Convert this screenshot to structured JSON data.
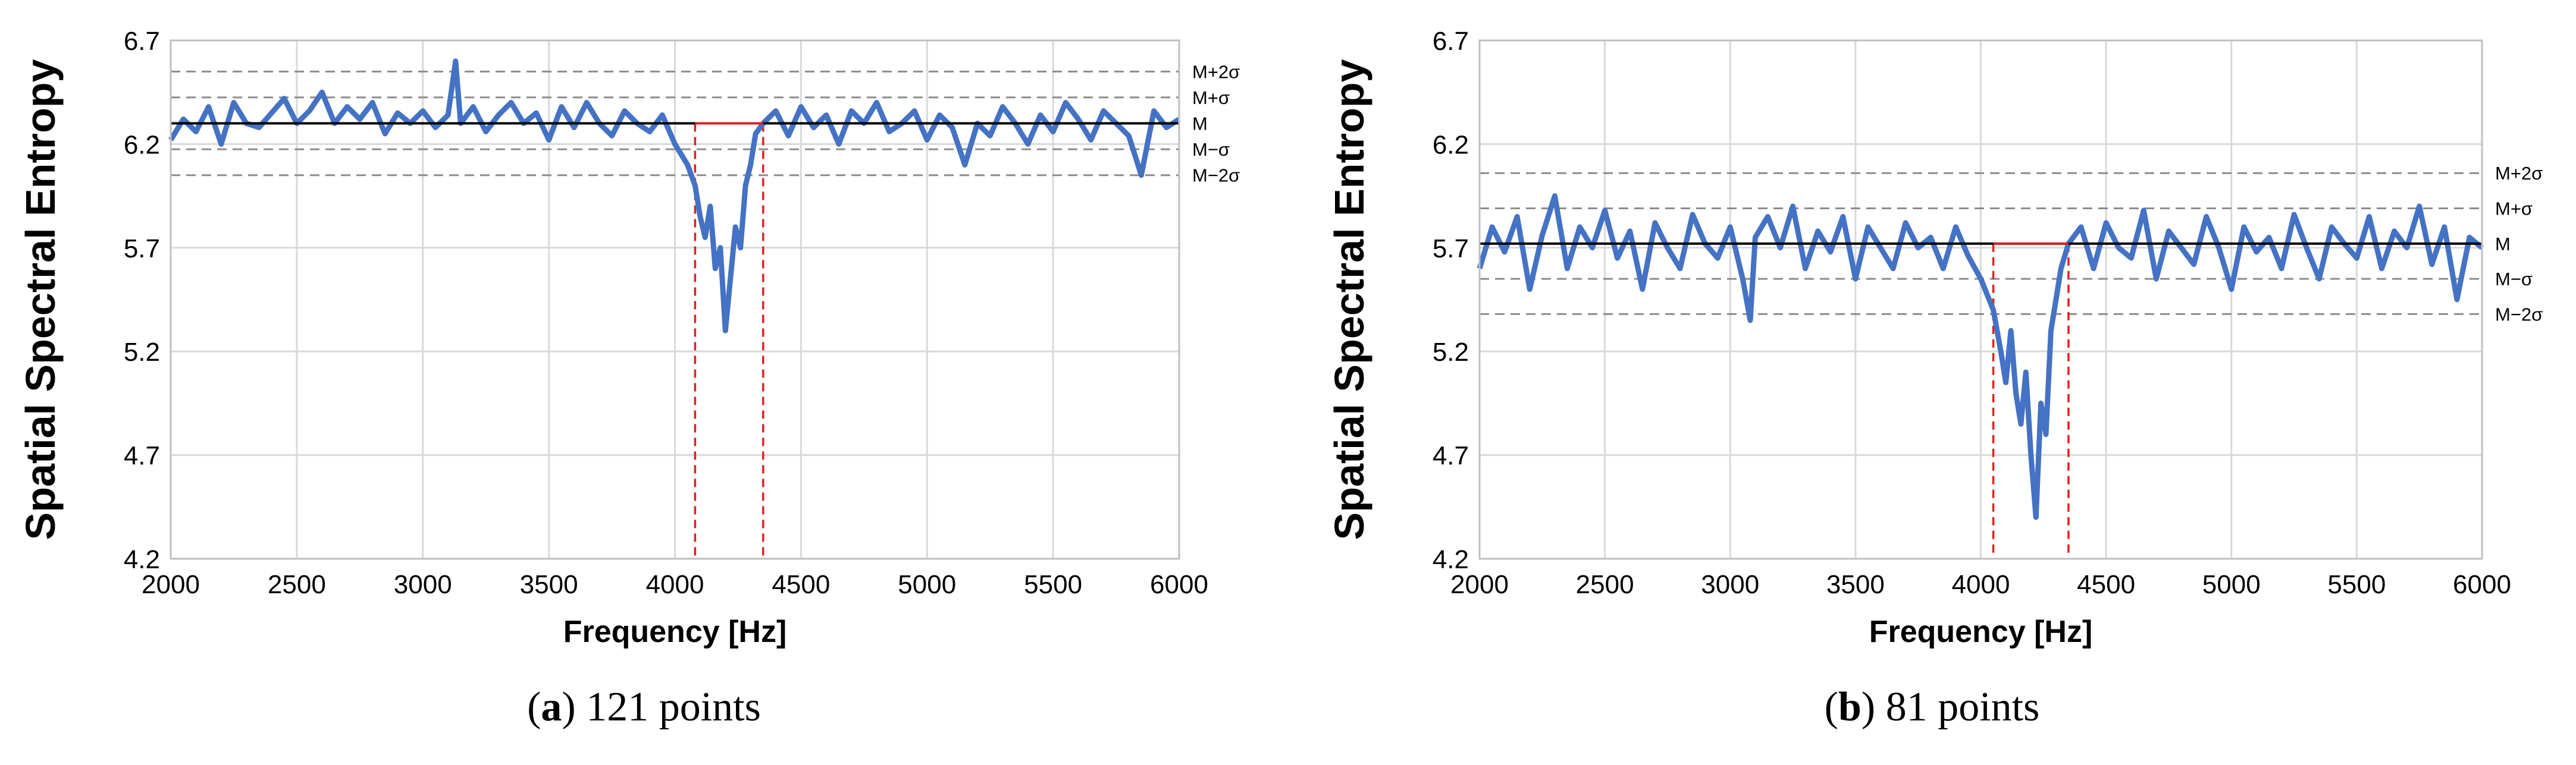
{
  "chart_data": [
    {
      "type": "line",
      "caption_letter": "a",
      "caption_text": ") 121 points",
      "caption_open": "(",
      "xlabel": "Frequency [Hz]",
      "ylabel": "Spatial Spectral Entropy",
      "xlim": [
        2000,
        6000
      ],
      "ylim": [
        4.2,
        6.7
      ],
      "xticks": [
        "2000",
        "2500",
        "3000",
        "3500",
        "4000",
        "4500",
        "5000",
        "5500",
        "6000"
      ],
      "yticks": [
        "4.2",
        "4.7",
        "5.2",
        "5.7",
        "6.2",
        "6.7"
      ],
      "grid": true,
      "series_color": "#4472C4",
      "mean": 6.3,
      "sigma": 0.125,
      "mean_line_color": "#000000",
      "band_color": "#e02020",
      "ref_lines": [
        {
          "label": "M+2σ",
          "value": 6.55
        },
        {
          "label": "M+σ",
          "value": 6.425
        },
        {
          "label": "M",
          "value": 6.3
        },
        {
          "label": "M−σ",
          "value": 6.175
        },
        {
          "label": "M−2σ",
          "value": 6.05
        }
      ],
      "band": [
        4080,
        4350
      ],
      "series": [
        {
          "x": [
            2000,
            2050,
            2100,
            2150,
            2200,
            2250,
            2300,
            2350,
            2400,
            2450,
            2500,
            2550,
            2600,
            2650,
            2700,
            2750,
            2800,
            2850,
            2900,
            2950,
            3000,
            3050,
            3100,
            3130,
            3150,
            3200,
            3250,
            3300,
            3350,
            3400,
            3450,
            3500,
            3550,
            3600,
            3650,
            3700,
            3750,
            3800,
            3850,
            3900,
            3950,
            4000,
            4050,
            4080,
            4100,
            4120,
            4140,
            4160,
            4180,
            4200,
            4220,
            4240,
            4260,
            4280,
            4300,
            4320,
            4350,
            4400,
            4450,
            4500,
            4550,
            4600,
            4650,
            4700,
            4750,
            4800,
            4850,
            4900,
            4950,
            5000,
            5050,
            5100,
            5150,
            5200,
            5250,
            5300,
            5350,
            5400,
            5450,
            5500,
            5550,
            5600,
            5650,
            5700,
            5750,
            5800,
            5850,
            5900,
            5950,
            6000
          ],
          "values": [
            6.22,
            6.32,
            6.26,
            6.38,
            6.2,
            6.4,
            6.3,
            6.28,
            6.35,
            6.42,
            6.3,
            6.36,
            6.45,
            6.3,
            6.38,
            6.32,
            6.4,
            6.25,
            6.35,
            6.3,
            6.36,
            6.28,
            6.34,
            6.6,
            6.3,
            6.38,
            6.26,
            6.34,
            6.4,
            6.3,
            6.35,
            6.22,
            6.38,
            6.28,
            6.4,
            6.3,
            6.24,
            6.36,
            6.3,
            6.26,
            6.34,
            6.2,
            6.1,
            6.0,
            5.85,
            5.75,
            5.9,
            5.6,
            5.7,
            5.3,
            5.55,
            5.8,
            5.7,
            6.0,
            6.1,
            6.25,
            6.3,
            6.36,
            6.24,
            6.38,
            6.28,
            6.34,
            6.2,
            6.36,
            6.3,
            6.4,
            6.26,
            6.3,
            6.36,
            6.22,
            6.34,
            6.28,
            6.1,
            6.3,
            6.24,
            6.38,
            6.3,
            6.2,
            6.34,
            6.26,
            6.4,
            6.32,
            6.22,
            6.36,
            6.3,
            6.24,
            6.05,
            6.36,
            6.28,
            6.32
          ]
        }
      ]
    },
    {
      "type": "line",
      "caption_letter": "b",
      "caption_text": ") 81 points",
      "caption_open": "(",
      "xlabel": "Frequency [Hz]",
      "ylabel": "Spatial Spectral Entropy",
      "xlim": [
        2000,
        6000
      ],
      "ylim": [
        4.2,
        6.7
      ],
      "xticks": [
        "2000",
        "2500",
        "3000",
        "3500",
        "4000",
        "4500",
        "5000",
        "5500",
        "6000"
      ],
      "yticks": [
        "4.2",
        "4.7",
        "5.2",
        "5.7",
        "6.2",
        "6.7"
      ],
      "grid": true,
      "series_color": "#4472C4",
      "mean": 5.72,
      "sigma": 0.17,
      "mean_line_color": "#000000",
      "band_color": "#e02020",
      "ref_lines": [
        {
          "label": "M+2σ",
          "value": 6.06
        },
        {
          "label": "M+σ",
          "value": 5.89
        },
        {
          "label": "M",
          "value": 5.72
        },
        {
          "label": "M−σ",
          "value": 5.55
        },
        {
          "label": "M−2σ",
          "value": 5.38
        }
      ],
      "band": [
        4050,
        4350
      ],
      "series": [
        {
          "x": [
            2000,
            2050,
            2100,
            2150,
            2200,
            2250,
            2300,
            2350,
            2400,
            2450,
            2500,
            2550,
            2600,
            2650,
            2700,
            2750,
            2800,
            2850,
            2900,
            2950,
            3000,
            3050,
            3080,
            3100,
            3150,
            3200,
            3250,
            3300,
            3350,
            3400,
            3450,
            3500,
            3550,
            3600,
            3650,
            3700,
            3750,
            3800,
            3850,
            3900,
            3950,
            4000,
            4050,
            4080,
            4100,
            4120,
            4140,
            4160,
            4180,
            4200,
            4220,
            4240,
            4260,
            4280,
            4300,
            4320,
            4350,
            4400,
            4450,
            4500,
            4550,
            4600,
            4650,
            4700,
            4750,
            4800,
            4850,
            4900,
            4950,
            5000,
            5050,
            5100,
            5150,
            5200,
            5250,
            5300,
            5350,
            5400,
            5450,
            5500,
            5550,
            5600,
            5650,
            5700,
            5750,
            5800,
            5850,
            5900,
            5950,
            6000
          ],
          "values": [
            5.6,
            5.8,
            5.68,
            5.85,
            5.5,
            5.76,
            5.95,
            5.6,
            5.8,
            5.7,
            5.88,
            5.65,
            5.78,
            5.5,
            5.82,
            5.7,
            5.6,
            5.86,
            5.72,
            5.65,
            5.8,
            5.55,
            5.35,
            5.75,
            5.85,
            5.7,
            5.9,
            5.6,
            5.78,
            5.68,
            5.85,
            5.55,
            5.8,
            5.7,
            5.6,
            5.82,
            5.7,
            5.75,
            5.6,
            5.8,
            5.66,
            5.55,
            5.4,
            5.2,
            5.05,
            5.3,
            5.0,
            4.85,
            5.1,
            4.7,
            4.4,
            4.95,
            4.8,
            5.3,
            5.45,
            5.6,
            5.72,
            5.8,
            5.6,
            5.82,
            5.7,
            5.65,
            5.88,
            5.55,
            5.78,
            5.7,
            5.62,
            5.85,
            5.7,
            5.5,
            5.8,
            5.68,
            5.75,
            5.6,
            5.86,
            5.7,
            5.55,
            5.8,
            5.72,
            5.65,
            5.85,
            5.6,
            5.78,
            5.7,
            5.9,
            5.62,
            5.8,
            5.45,
            5.75,
            5.7
          ]
        }
      ]
    }
  ]
}
